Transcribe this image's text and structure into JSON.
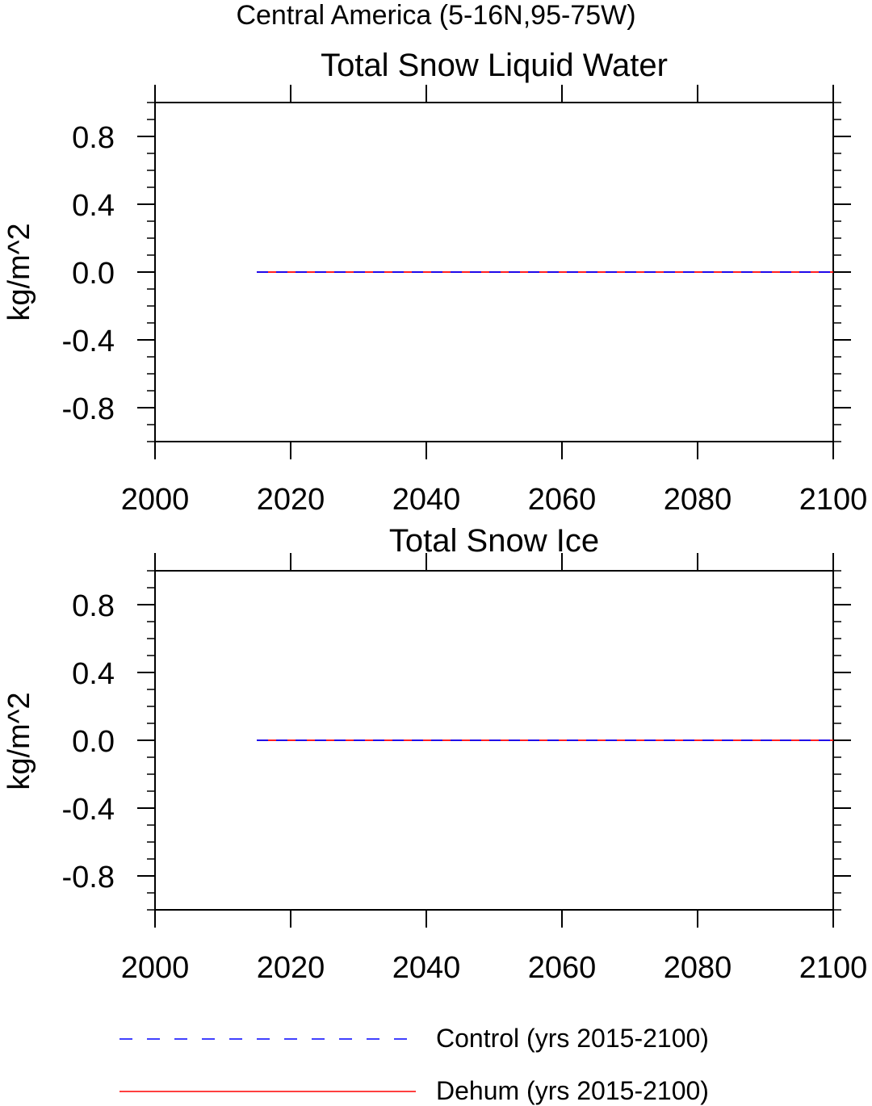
{
  "suptitle": "Central America (5-16N,95-75W)",
  "chart_data": [
    {
      "type": "line",
      "title": "Total Snow Liquid Water",
      "xlabel": "",
      "ylabel": "kg/m^2",
      "xlim": [
        2000,
        2100
      ],
      "ylim": [
        -1.0,
        1.0
      ],
      "x_ticks": [
        2000,
        2020,
        2040,
        2060,
        2080,
        2100
      ],
      "x_tick_labels": [
        "2000",
        "2020",
        "2040",
        "2060",
        "2080",
        "2100"
      ],
      "y_ticks": [
        0.8,
        0.4,
        0.0,
        -0.4,
        -0.8
      ],
      "y_tick_labels": [
        "0.8",
        "0.4",
        "0.0",
        "-0.4",
        "-0.8"
      ],
      "grid": false,
      "series": [
        {
          "name": "Control (yrs 2015-2100)",
          "color": "#0000ff",
          "style": "dashed",
          "x": [
            2015,
            2100
          ],
          "values": [
            0.0,
            0.0
          ]
        },
        {
          "name": "Dehum (yrs 2015-2100)",
          "color": "#ff0000",
          "style": "solid",
          "x": [
            2015,
            2100
          ],
          "values": [
            0.0,
            0.0
          ]
        }
      ]
    },
    {
      "type": "line",
      "title": "Total Snow Ice",
      "xlabel": "",
      "ylabel": "kg/m^2",
      "xlim": [
        2000,
        2100
      ],
      "ylim": [
        -1.0,
        1.0
      ],
      "x_ticks": [
        2000,
        2020,
        2040,
        2060,
        2080,
        2100
      ],
      "x_tick_labels": [
        "2000",
        "2020",
        "2040",
        "2060",
        "2080",
        "2100"
      ],
      "y_ticks": [
        0.8,
        0.4,
        0.0,
        -0.4,
        -0.8
      ],
      "y_tick_labels": [
        "0.8",
        "0.4",
        "0.0",
        "-0.4",
        "-0.8"
      ],
      "grid": false,
      "series": [
        {
          "name": "Control (yrs 2015-2100)",
          "color": "#0000ff",
          "style": "dashed",
          "x": [
            2015,
            2100
          ],
          "values": [
            0.0,
            0.0
          ]
        },
        {
          "name": "Dehum (yrs 2015-2100)",
          "color": "#ff0000",
          "style": "solid",
          "x": [
            2015,
            2100
          ],
          "values": [
            0.0,
            0.0
          ]
        }
      ]
    }
  ],
  "legend": {
    "placement": "bottom",
    "items": [
      {
        "label": "Control (yrs 2015-2100)",
        "color": "#0000ff",
        "style": "dashed"
      },
      {
        "label": "Dehum (yrs 2015-2100)",
        "color": "#ff0000",
        "style": "solid"
      }
    ]
  }
}
